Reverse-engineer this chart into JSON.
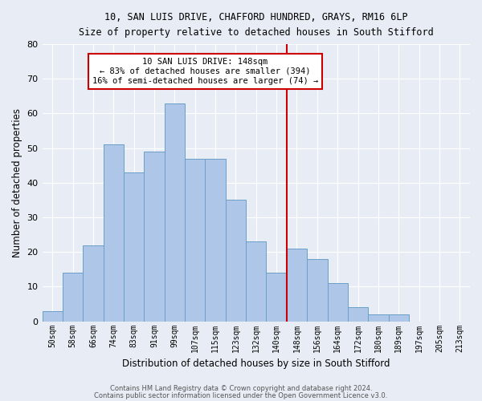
{
  "title_line1": "10, SAN LUIS DRIVE, CHAFFORD HUNDRED, GRAYS, RM16 6LP",
  "title_line2": "Size of property relative to detached houses in South Stifford",
  "xlabel": "Distribution of detached houses by size in South Stifford",
  "ylabel": "Number of detached properties",
  "footer_line1": "Contains HM Land Registry data © Crown copyright and database right 2024.",
  "footer_line2": "Contains public sector information licensed under the Open Government Licence v3.0.",
  "bar_labels": [
    "50sqm",
    "58sqm",
    "66sqm",
    "74sqm",
    "83sqm",
    "91sqm",
    "99sqm",
    "107sqm",
    "115sqm",
    "123sqm",
    "132sqm",
    "140sqm",
    "148sqm",
    "156sqm",
    "164sqm",
    "172sqm",
    "180sqm",
    "189sqm",
    "197sqm",
    "205sqm",
    "213sqm"
  ],
  "bar_values": [
    3,
    14,
    22,
    51,
    43,
    49,
    63,
    47,
    47,
    35,
    23,
    14,
    21,
    18,
    11,
    4,
    2,
    2,
    0,
    0,
    0
  ],
  "bar_color": "#aec6e8",
  "bar_edge_color": "#6a9fc8",
  "bg_color": "#e8edf5",
  "grid_color": "#ffffff",
  "vline_x_index": 12,
  "vline_color": "#cc0000",
  "annotation_title": "10 SAN LUIS DRIVE: 148sqm",
  "annotation_line2": "← 83% of detached houses are smaller (394)",
  "annotation_line3": "16% of semi-detached houses are larger (74) →",
  "annotation_box_color": "#cc0000",
  "ylim": [
    0,
    80
  ],
  "yticks": [
    0,
    10,
    20,
    30,
    40,
    50,
    60,
    70,
    80
  ]
}
